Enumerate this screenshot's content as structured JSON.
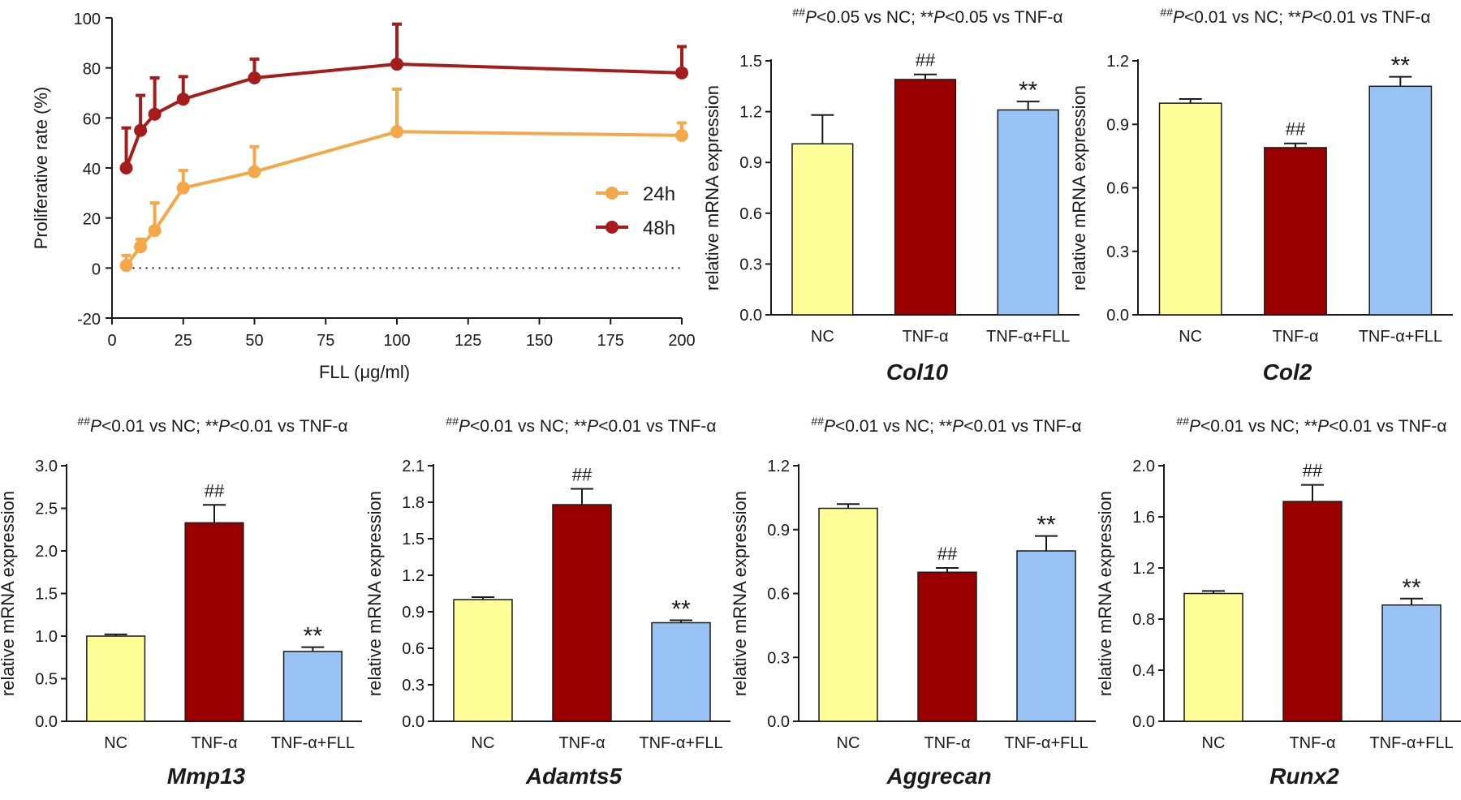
{
  "colors": {
    "axis": "#1a1a1a",
    "nc": "#ffff99",
    "tnf": "#9b0000",
    "fll": "#99c2f5",
    "series_24h": "#f5a84a",
    "series_48h": "#a51c1c"
  },
  "chart_data": [
    {
      "id": "prolif",
      "type": "line",
      "title": "",
      "xlabel": "FLL (μg/ml)",
      "ylabel": "Proliferative rate (%)",
      "xlim": [
        0,
        200
      ],
      "ylim": [
        -20,
        100
      ],
      "xticks": [
        "0",
        "25",
        "50",
        "75",
        "100",
        "125",
        "150",
        "175",
        "200"
      ],
      "yticks": [
        "-20",
        "0",
        "20",
        "40",
        "60",
        "80",
        "100"
      ],
      "reference_line_y": 0,
      "x": [
        5,
        10,
        15,
        25,
        50,
        100,
        200
      ],
      "series": [
        {
          "name": "24h",
          "values": [
            1,
            8.5,
            15,
            32,
            38.5,
            54.5,
            53
          ],
          "errors": [
            4,
            3,
            11,
            7,
            10,
            17,
            5
          ]
        },
        {
          "name": "48h",
          "values": [
            40,
            55,
            61.5,
            67.5,
            76,
            81.5,
            78
          ],
          "errors": [
            16,
            14,
            14.5,
            9,
            7.5,
            16,
            10.5
          ]
        }
      ],
      "legend": [
        "24h",
        "48h"
      ],
      "legend_position": "center-right"
    },
    {
      "id": "col10",
      "type": "bar",
      "gene": "Col10",
      "stat_note": {
        "sup1": "##",
        "text1": "P<0.05 vs NC; **",
        "p": "P",
        "text2": "<0.05 vs TNF-α"
      },
      "ylabel": "relative mRNA expression",
      "ylim": [
        0,
        1.5
      ],
      "yticks": [
        "0.0",
        "0.3",
        "0.6",
        "0.9",
        "1.2",
        "1.5"
      ],
      "categories": [
        "NC",
        "TNF-α",
        "TNF-α+FLL"
      ],
      "values": [
        1.01,
        1.39,
        1.21
      ],
      "errors": [
        0.17,
        0.03,
        0.05
      ],
      "significance": [
        "",
        "##",
        "**"
      ]
    },
    {
      "id": "col2",
      "type": "bar",
      "gene": "Col2",
      "stat_note": {
        "sup1": "##",
        "text1": "P<0.01 vs NC; **",
        "p": "P",
        "text2": "<0.01 vs TNF-α"
      },
      "ylabel": "relative mRNA expression",
      "ylim": [
        0,
        1.2
      ],
      "yticks": [
        "0.0",
        "0.3",
        "0.6",
        "0.9",
        "1.2"
      ],
      "categories": [
        "NC",
        "TNF-α",
        "TNF-α+FLL"
      ],
      "values": [
        1.0,
        0.79,
        1.08
      ],
      "errors": [
        0.02,
        0.02,
        0.045
      ],
      "significance": [
        "",
        "##",
        "**"
      ]
    },
    {
      "id": "mmp13",
      "type": "bar",
      "gene": "Mmp13",
      "stat_note": {
        "sup1": "##",
        "text1": "P<0.01 vs NC; **",
        "p": "P",
        "text2": "<0.01 vs TNF-α"
      },
      "ylabel": "relative mRNA expression",
      "ylim": [
        0,
        3.0
      ],
      "yticks": [
        "0.0",
        "0.5",
        "1.0",
        "1.5",
        "2.0",
        "2.5",
        "3.0"
      ],
      "categories": [
        "NC",
        "TNF-α",
        "TNF-α+FLL"
      ],
      "values": [
        1.0,
        2.33,
        0.82
      ],
      "errors": [
        0.02,
        0.21,
        0.05
      ],
      "significance": [
        "",
        "##",
        "**"
      ]
    },
    {
      "id": "adamts5",
      "type": "bar",
      "gene": "Adamts5",
      "stat_note": {
        "sup1": "##",
        "text1": "P<0.01 vs NC; **",
        "p": "P",
        "text2": "<0.01 vs TNF-α"
      },
      "ylabel": "relative mRNA expression",
      "ylim": [
        0,
        2.1
      ],
      "yticks": [
        "0.0",
        "0.3",
        "0.6",
        "0.9",
        "1.2",
        "1.5",
        "1.8",
        "2.1"
      ],
      "categories": [
        "NC",
        "TNF-α",
        "TNF-α+FLL"
      ],
      "values": [
        1.0,
        1.78,
        0.81
      ],
      "errors": [
        0.02,
        0.13,
        0.02
      ],
      "significance": [
        "",
        "##",
        "**"
      ]
    },
    {
      "id": "aggrecan",
      "type": "bar",
      "gene": "Aggrecan",
      "stat_note": {
        "sup1": "##",
        "text1": "P<0.01 vs NC; **",
        "p": "P",
        "text2": "<0.01 vs TNF-α"
      },
      "ylabel": "relative mRNA expression",
      "ylim": [
        0,
        1.2
      ],
      "yticks": [
        "0.0",
        "0.3",
        "0.6",
        "0.9",
        "1.2"
      ],
      "categories": [
        "NC",
        "TNF-α",
        "TNF-α+FLL"
      ],
      "values": [
        1.0,
        0.7,
        0.8
      ],
      "errors": [
        0.02,
        0.02,
        0.07
      ],
      "significance": [
        "",
        "##",
        "**"
      ]
    },
    {
      "id": "runx2",
      "type": "bar",
      "gene": "Runx2",
      "stat_note": {
        "sup1": "##",
        "text1": "P<0.01 vs NC; **",
        "p": "P",
        "text2": "<0.01 vs TNF-α"
      },
      "ylabel": "relative mRNA expression",
      "ylim": [
        0,
        2.0
      ],
      "yticks": [
        "0.0",
        "0.4",
        "0.8",
        "1.2",
        "1.6",
        "2.0"
      ],
      "categories": [
        "NC",
        "TNF-α",
        "TNF-α+FLL"
      ],
      "values": [
        1.0,
        1.72,
        0.91
      ],
      "errors": [
        0.02,
        0.13,
        0.05
      ],
      "significance": [
        "",
        "##",
        "**"
      ]
    }
  ]
}
